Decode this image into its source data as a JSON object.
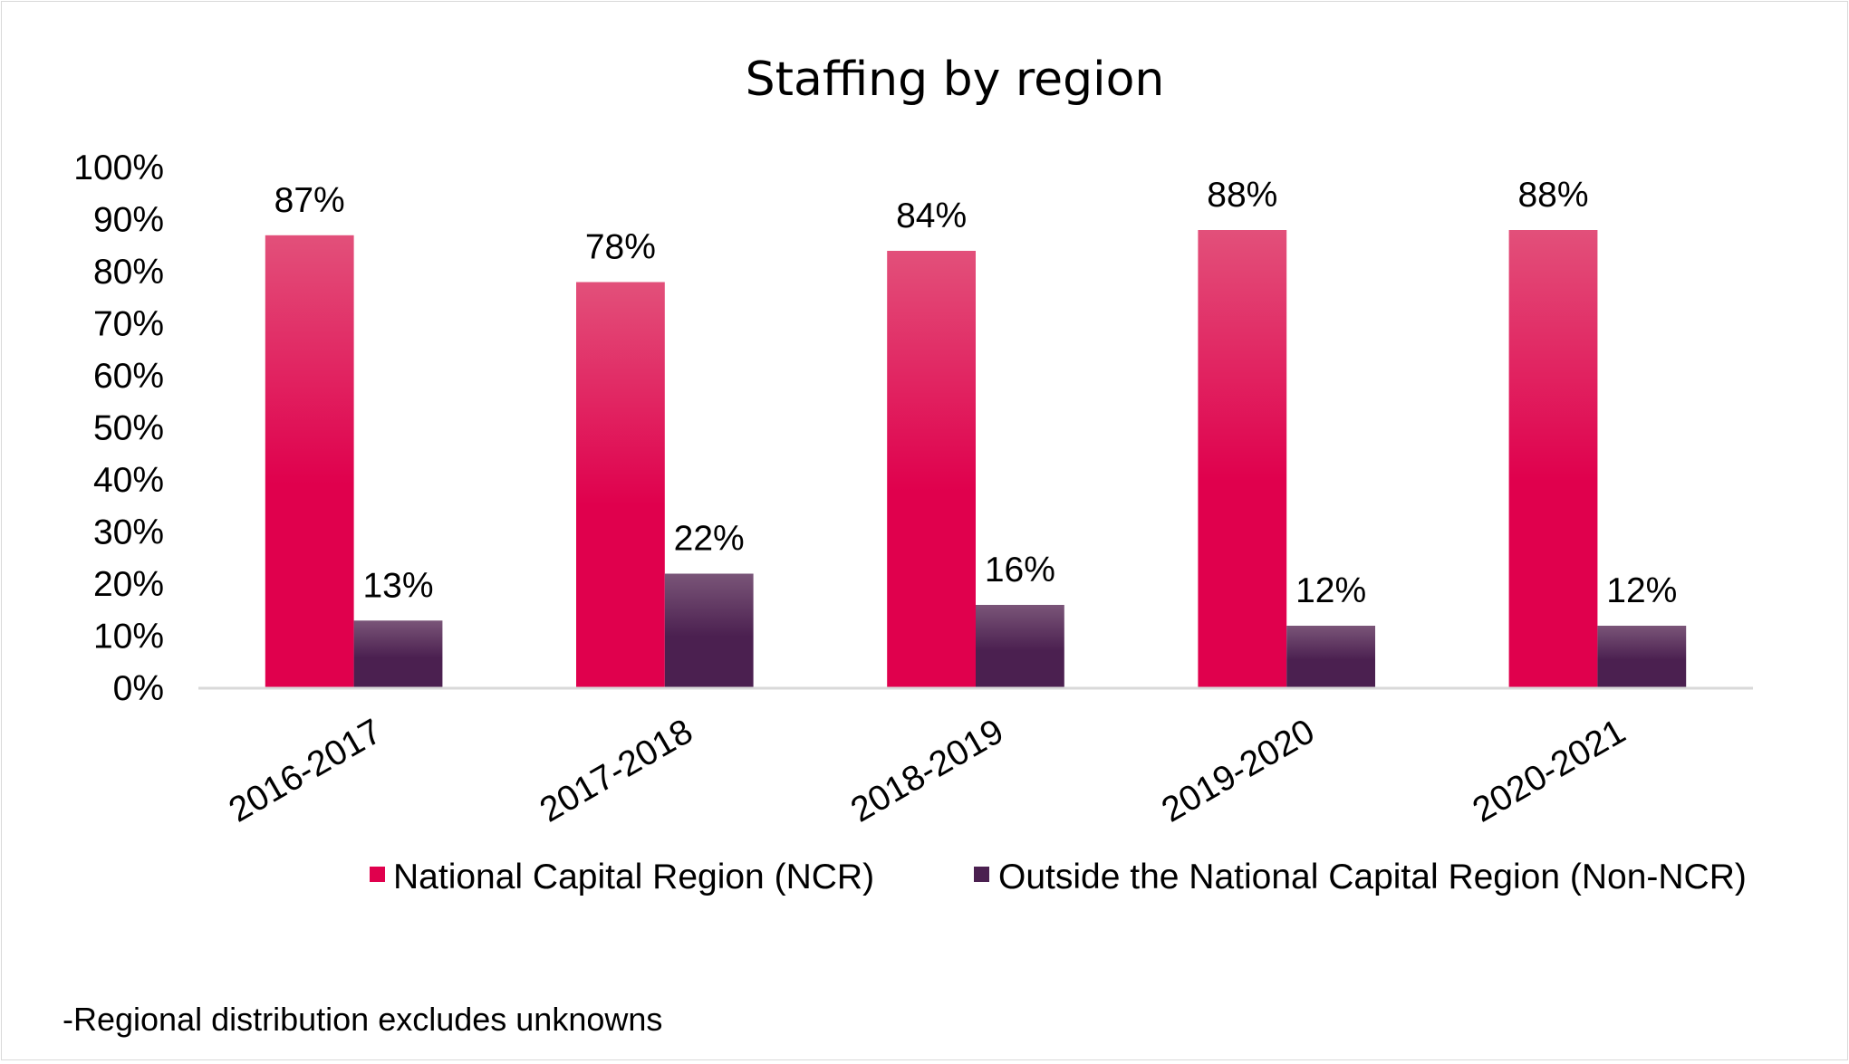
{
  "chart_data": {
    "type": "bar",
    "title": "Staffing by region",
    "categories": [
      "2016-2017",
      "2017-2018",
      "2018-2019",
      "2019-2020",
      "2020-2021"
    ],
    "series": [
      {
        "name": "National Capital Region (NCR)",
        "values": [
          87,
          78,
          84,
          88,
          88
        ],
        "data_labels": [
          "87%",
          "78%",
          "84%",
          "88%",
          "88%"
        ],
        "color": "#e0004d",
        "color_light": "#e2507a"
      },
      {
        "name": "Outside the National Capital Region (Non-NCR)",
        "values": [
          13,
          22,
          16,
          12,
          12
        ],
        "data_labels": [
          "13%",
          "22%",
          "16%",
          "12%",
          "12%"
        ],
        "color": "#4b2050",
        "color_light": "#7a5578"
      }
    ],
    "y_ticks": [
      0,
      10,
      20,
      30,
      40,
      50,
      60,
      70,
      80,
      90,
      100
    ],
    "y_tick_labels": [
      "0%",
      "10%",
      "20%",
      "30%",
      "40%",
      "50%",
      "60%",
      "70%",
      "80%",
      "90%",
      "100%"
    ],
    "ylim": [
      0,
      100
    ],
    "xlabel": "",
    "ylabel": "",
    "grid": false,
    "legend_position": "bottom",
    "footnote": "-Regional distribution excludes unknowns"
  }
}
